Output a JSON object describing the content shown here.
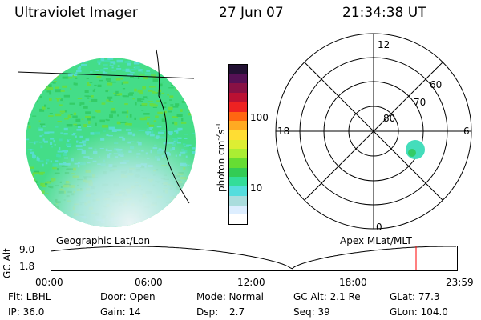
{
  "header": {
    "instrument": "Ultraviolet Imager",
    "date": "27 Jun 07",
    "time": "21:34:38 UT"
  },
  "colorbar": {
    "label": "photon cm",
    "label_sup1": "-2",
    "label_mid": "s",
    "label_sup2": "-1",
    "ticks": [
      {
        "value": 100,
        "text": "100"
      },
      {
        "value": 10,
        "text": "10"
      }
    ],
    "colors": [
      "#ffffff",
      "#ddeeff",
      "#aadddd",
      "#55dddd",
      "#33dd99",
      "#33cc55",
      "#66dd33",
      "#aaee33",
      "#ddee33",
      "#ffdd33",
      "#ffaa22",
      "#ff6611",
      "#ee2222",
      "#bb1133",
      "#881144",
      "#551155",
      "#221133"
    ]
  },
  "polar": {
    "labels": {
      "top": "12",
      "bottom": "0",
      "left": "18",
      "right": "6",
      "ring60": "60",
      "ring70": "70",
      "ring80": "80"
    }
  },
  "panels": {
    "left_label": "Geographic Lat/Lon",
    "right_label": "Apex MLat/MLT"
  },
  "altitude_plot": {
    "ylabel": "GC Alt",
    "ymax": "9.0",
    "ymin": "1.8",
    "xticks": [
      "00:00",
      "06:00",
      "12:00",
      "18:00",
      "23:59"
    ],
    "current_time_color": "#ff0000"
  },
  "footer": {
    "row1": {
      "flt": "Flt: LBHL",
      "door": "Door: Open",
      "mode": "Mode: Normal",
      "gcalt": "GC Alt: 2.1 Re",
      "glat": "GLat:  77.3"
    },
    "row2": {
      "ip": "IP: 36.0",
      "gain": "Gain: 14",
      "dsp_label": "Dsp:",
      "dsp_value": "2.7",
      "seq": "Seq: 39",
      "glon": "GLon: 104.0"
    }
  }
}
